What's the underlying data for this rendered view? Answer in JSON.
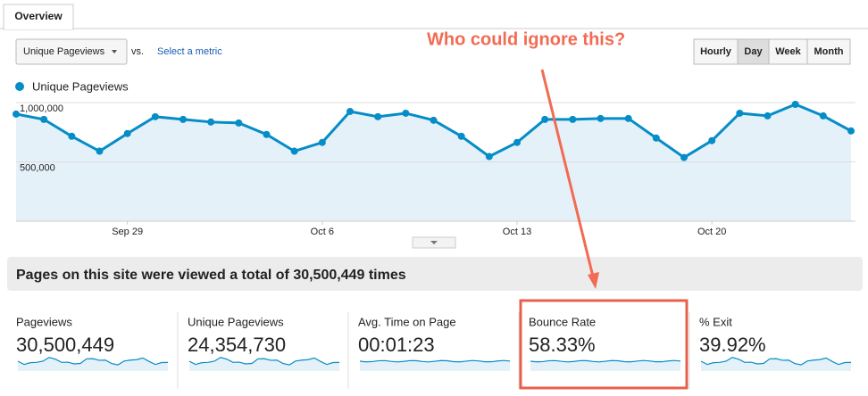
{
  "tab": "Overview",
  "controls": {
    "metric_select": "Unique Pageviews",
    "vs": "vs.",
    "select_metric": "Select a metric",
    "granularity": [
      "Hourly",
      "Day",
      "Week",
      "Month"
    ],
    "active_granularity": 1
  },
  "annotation": "Who could ignore this?",
  "chart_data": {
    "type": "line",
    "categories": [
      null,
      null,
      null,
      null,
      "Sep 29",
      null,
      null,
      null,
      null,
      null,
      null,
      "Oct 6",
      null,
      null,
      null,
      null,
      null,
      null,
      "Oct 13",
      null,
      null,
      null,
      null,
      null,
      null,
      "Oct 20",
      null,
      null,
      null,
      null,
      null
    ],
    "series": [
      {
        "name": "Unique Pageviews",
        "color": "#058dc7",
        "values": [
          903000,
          858000,
          716000,
          590000,
          739000,
          881000,
          858000,
          836000,
          828000,
          731000,
          590000,
          664000,
          925000,
          881000,
          910000,
          851000,
          716000,
          545000,
          664000,
          858000,
          858000,
          866000,
          866000,
          701000,
          537000,
          679000,
          910000,
          888000,
          985000,
          888000,
          761000
        ]
      }
    ],
    "ylim": [
      0,
      1000000
    ],
    "yticks": [
      {
        "value": 500000,
        "label": "500,000"
      },
      {
        "value": 1000000,
        "label": "1,000,000"
      }
    ],
    "grid": true
  },
  "summary": "Pages on this site were viewed a total of 30,500,449 times",
  "metrics": [
    {
      "label": "Pageviews",
      "value": "30,500,449"
    },
    {
      "label": "Unique Pageviews",
      "value": "24,354,730"
    },
    {
      "label": "Avg. Time on Page",
      "value": "00:01:23"
    },
    {
      "label": "Bounce Rate",
      "value": "58.33%"
    },
    {
      "label": "% Exit",
      "value": "39.92%"
    }
  ],
  "highlighted_metric": 3
}
